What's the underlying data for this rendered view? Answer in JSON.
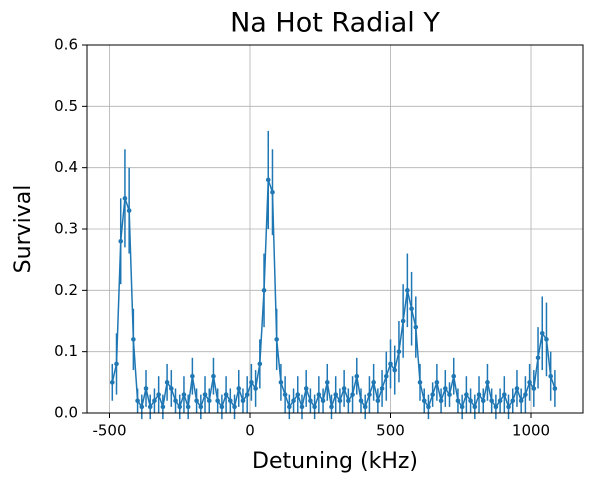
{
  "chart_data": {
    "type": "errorbar_line",
    "title": "Na Hot Radial Y",
    "x_label": "Detuning (kHz)",
    "y_label": "Survival",
    "x": [
      -490,
      -475,
      -460,
      -445,
      -430,
      -415,
      -400,
      -385,
      -370,
      -355,
      -340,
      -325,
      -310,
      -295,
      -280,
      -265,
      -250,
      -235,
      -220,
      -205,
      -190,
      -175,
      -160,
      -145,
      -130,
      -115,
      -100,
      -85,
      -70,
      -55,
      -40,
      -25,
      -10,
      5,
      20,
      35,
      50,
      65,
      80,
      95,
      110,
      125,
      140,
      155,
      170,
      185,
      200,
      215,
      230,
      245,
      260,
      275,
      290,
      305,
      320,
      335,
      350,
      365,
      380,
      395,
      410,
      425,
      440,
      455,
      470,
      485,
      500,
      515,
      530,
      545,
      560,
      575,
      590,
      605,
      620,
      635,
      650,
      665,
      680,
      695,
      710,
      725,
      740,
      755,
      770,
      785,
      800,
      815,
      830,
      845,
      860,
      875,
      890,
      905,
      920,
      935,
      950,
      965,
      980,
      995,
      1010,
      1025,
      1040,
      1055,
      1070,
      1085
    ],
    "series": [
      {
        "color": "#1f77b4",
        "values": [
          0.05,
          0.08,
          0.28,
          0.35,
          0.33,
          0.12,
          0.02,
          0.01,
          0.04,
          0.01,
          0.02,
          0.03,
          0.01,
          0.05,
          0.04,
          0.02,
          0.01,
          0.03,
          0.01,
          0.06,
          0.02,
          0.01,
          0.03,
          0.02,
          0.06,
          0.02,
          0.01,
          0.03,
          0.02,
          0.01,
          0.04,
          0.02,
          0.03,
          0.05,
          0.04,
          0.08,
          0.2,
          0.38,
          0.36,
          0.12,
          0.05,
          0.03,
          0.01,
          0.02,
          0.03,
          0.01,
          0.04,
          0.02,
          0.01,
          0.03,
          0.02,
          0.05,
          0.01,
          0.03,
          0.02,
          0.04,
          0.02,
          0.03,
          0.06,
          0.02,
          0.01,
          0.03,
          0.05,
          0.02,
          0.04,
          0.06,
          0.08,
          0.07,
          0.1,
          0.15,
          0.2,
          0.17,
          0.14,
          0.05,
          0.02,
          0.01,
          0.03,
          0.05,
          0.02,
          0.04,
          0.03,
          0.06,
          0.02,
          0.01,
          0.03,
          0.02,
          0.01,
          0.03,
          0.02,
          0.05,
          0.02,
          0.01,
          0.02,
          0.03,
          0.01,
          0.02,
          0.04,
          0.02,
          0.03,
          0.05,
          0.04,
          0.09,
          0.13,
          0.12,
          0.06,
          0.04
        ],
        "errors": [
          0.03,
          0.05,
          0.07,
          0.08,
          0.07,
          0.05,
          0.02,
          0.02,
          0.03,
          0.02,
          0.02,
          0.03,
          0.02,
          0.03,
          0.03,
          0.02,
          0.02,
          0.03,
          0.02,
          0.03,
          0.02,
          0.02,
          0.03,
          0.02,
          0.03,
          0.02,
          0.02,
          0.03,
          0.02,
          0.02,
          0.03,
          0.02,
          0.03,
          0.03,
          0.03,
          0.04,
          0.06,
          0.08,
          0.07,
          0.05,
          0.03,
          0.03,
          0.02,
          0.02,
          0.03,
          0.02,
          0.03,
          0.02,
          0.02,
          0.03,
          0.02,
          0.03,
          0.02,
          0.03,
          0.02,
          0.03,
          0.02,
          0.03,
          0.03,
          0.02,
          0.02,
          0.03,
          0.03,
          0.02,
          0.03,
          0.04,
          0.04,
          0.04,
          0.05,
          0.06,
          0.06,
          0.06,
          0.05,
          0.03,
          0.02,
          0.02,
          0.02,
          0.03,
          0.02,
          0.03,
          0.02,
          0.03,
          0.02,
          0.02,
          0.03,
          0.02,
          0.02,
          0.03,
          0.02,
          0.03,
          0.02,
          0.02,
          0.02,
          0.03,
          0.02,
          0.02,
          0.03,
          0.02,
          0.03,
          0.03,
          0.03,
          0.05,
          0.06,
          0.06,
          0.04,
          0.03
        ]
      }
    ],
    "xlim": [
      -580,
      1185
    ],
    "ylim": [
      0,
      0.6
    ],
    "xticks": [
      -500,
      0,
      500,
      1000
    ],
    "yticks": [
      {
        "value": 0,
        "label": "0.0"
      },
      0.1,
      0.2,
      0.3,
      0.4,
      0.5,
      0.6
    ],
    "grid": true
  }
}
